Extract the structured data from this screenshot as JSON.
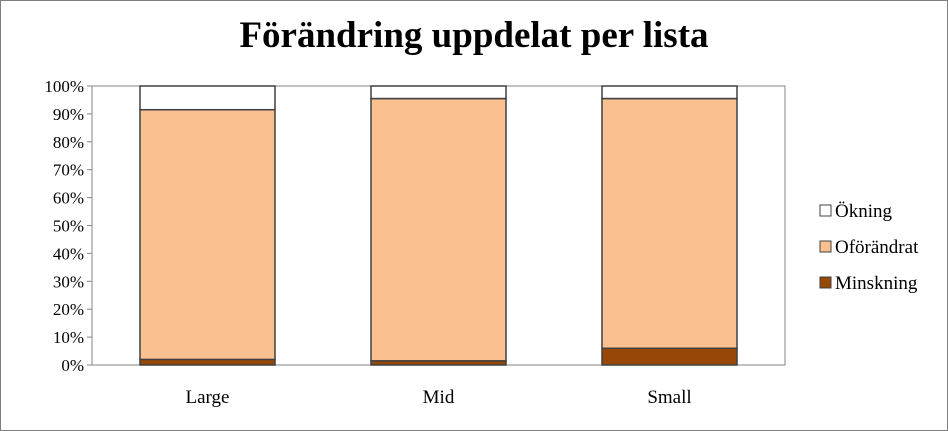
{
  "chart_data": {
    "type": "bar",
    "stacked": true,
    "percent_stacked": true,
    "title": "Förändring uppdelat per lista",
    "xlabel": "",
    "ylabel": "",
    "categories": [
      "Large",
      "Mid",
      "Small"
    ],
    "y_ticks": [
      "0%",
      "10%",
      "20%",
      "30%",
      "40%",
      "50%",
      "60%",
      "70%",
      "80%",
      "90%",
      "100%"
    ],
    "ylim": [
      0,
      100
    ],
    "grid": false,
    "legend_position": "right",
    "series": [
      {
        "name": "Minskning",
        "values": [
          2,
          1.5,
          6
        ],
        "color": "#984806"
      },
      {
        "name": "Oförändrat",
        "values": [
          89.5,
          94,
          89.5
        ],
        "color": "#fac090"
      },
      {
        "name": "Ökning",
        "values": [
          8.5,
          4.5,
          4.5
        ],
        "color": "#ffffff"
      }
    ]
  }
}
